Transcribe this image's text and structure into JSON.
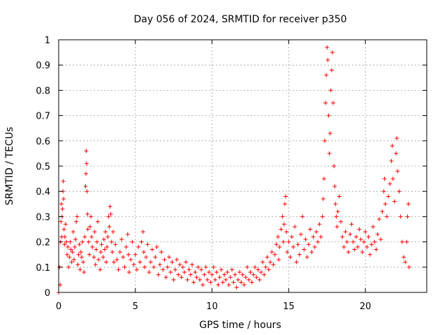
{
  "chart_data": {
    "type": "scatter",
    "title": "Day 056 of 2024, SRMTID for receiver p350",
    "xlabel": "GPS time / hours",
    "ylabel": "SRMTID / TECUs",
    "xlim": [
      0,
      24
    ],
    "ylim": [
      0,
      1
    ],
    "xticks": [
      0,
      5,
      10,
      15,
      20
    ],
    "xtick_labels": [
      "0",
      "5",
      "10",
      "15",
      "20"
    ],
    "yticks": [
      0,
      0.1,
      0.2,
      0.3,
      0.4,
      0.5,
      0.6,
      0.7,
      0.8,
      0.9,
      1
    ],
    "ytick_labels": [
      "0",
      "0.1",
      "0.2",
      "0.3",
      "0.4",
      "0.5",
      "0.6",
      "0.7",
      "0.8",
      "0.9",
      "1"
    ],
    "grid": true,
    "marker": "+",
    "series": [
      {
        "name": "SRMTID",
        "color": "#ff0000",
        "points": [
          [
            0.0,
            0.0
          ],
          [
            0.05,
            0.1
          ],
          [
            0.1,
            0.03
          ],
          [
            0.12,
            0.2
          ],
          [
            0.15,
            0.28
          ],
          [
            0.18,
            0.35
          ],
          [
            0.2,
            0.22
          ],
          [
            0.22,
            0.3
          ],
          [
            0.25,
            0.33
          ],
          [
            0.28,
            0.4
          ],
          [
            0.3,
            0.44
          ],
          [
            0.32,
            0.37
          ],
          [
            0.35,
            0.25
          ],
          [
            0.38,
            0.19
          ],
          [
            0.4,
            0.22
          ],
          [
            0.45,
            0.27
          ],
          [
            0.5,
            0.2
          ],
          [
            0.55,
            0.15
          ],
          [
            0.6,
            0.18
          ],
          [
            0.65,
            0.1
          ],
          [
            0.7,
            0.14
          ],
          [
            0.75,
            0.2
          ],
          [
            0.8,
            0.17
          ],
          [
            0.85,
            0.12
          ],
          [
            0.9,
            0.16
          ],
          [
            0.95,
            0.24
          ],
          [
            1.0,
            0.13
          ],
          [
            1.05,
            0.18
          ],
          [
            1.1,
            0.21
          ],
          [
            1.15,
            0.28
          ],
          [
            1.2,
            0.3
          ],
          [
            1.25,
            0.11
          ],
          [
            1.3,
            0.15
          ],
          [
            1.35,
            0.19
          ],
          [
            1.4,
            0.09
          ],
          [
            1.45,
            0.16
          ],
          [
            1.5,
            0.14
          ],
          [
            1.55,
            0.2
          ],
          [
            1.6,
            0.12
          ],
          [
            1.65,
            0.08
          ],
          [
            1.7,
            0.22
          ],
          [
            1.75,
            0.42
          ],
          [
            1.78,
            0.47
          ],
          [
            1.8,
            0.56
          ],
          [
            1.82,
            0.51
          ],
          [
            1.85,
            0.4
          ],
          [
            1.88,
            0.31
          ],
          [
            1.9,
            0.25
          ],
          [
            1.95,
            0.2
          ],
          [
            2.0,
            0.15
          ],
          [
            2.05,
            0.26
          ],
          [
            2.1,
            0.3
          ],
          [
            2.15,
            0.22
          ],
          [
            2.2,
            0.18
          ],
          [
            2.3,
            0.14
          ],
          [
            2.35,
            0.24
          ],
          [
            2.4,
            0.11
          ],
          [
            2.45,
            0.17
          ],
          [
            2.5,
            0.2
          ],
          [
            2.55,
            0.28
          ],
          [
            2.6,
            0.13
          ],
          [
            2.7,
            0.09
          ],
          [
            2.75,
            0.16
          ],
          [
            2.8,
            0.19
          ],
          [
            2.9,
            0.14
          ],
          [
            2.95,
            0.21
          ],
          [
            3.0,
            0.17
          ],
          [
            3.05,
            0.24
          ],
          [
            3.1,
            0.12
          ],
          [
            3.15,
            0.18
          ],
          [
            3.2,
            0.22
          ],
          [
            3.25,
            0.3
          ],
          [
            3.3,
            0.26
          ],
          [
            3.35,
            0.34
          ],
          [
            3.4,
            0.31
          ],
          [
            3.45,
            0.2
          ],
          [
            3.5,
            0.16
          ],
          [
            3.55,
            0.24
          ],
          [
            3.6,
            0.12
          ],
          [
            3.7,
            0.19
          ],
          [
            3.8,
            0.13
          ],
          [
            3.9,
            0.09
          ],
          [
            4.0,
            0.16
          ],
          [
            4.1,
            0.21
          ],
          [
            4.2,
            0.14
          ],
          [
            4.3,
            0.1
          ],
          [
            4.4,
            0.18
          ],
          [
            4.5,
            0.23
          ],
          [
            4.55,
            0.15
          ],
          [
            4.6,
            0.08
          ],
          [
            4.7,
            0.13
          ],
          [
            4.8,
            0.2
          ],
          [
            4.9,
            0.11
          ],
          [
            5.0,
            0.15
          ],
          [
            5.1,
            0.09
          ],
          [
            5.2,
            0.18
          ],
          [
            5.3,
            0.12
          ],
          [
            5.4,
            0.2
          ],
          [
            5.5,
            0.24
          ],
          [
            5.55,
            0.16
          ],
          [
            5.6,
            0.1
          ],
          [
            5.7,
            0.14
          ],
          [
            5.8,
            0.19
          ],
          [
            5.9,
            0.08
          ],
          [
            6.0,
            0.12
          ],
          [
            6.1,
            0.17
          ],
          [
            6.2,
            0.1
          ],
          [
            6.3,
            0.14
          ],
          [
            6.4,
            0.18
          ],
          [
            6.5,
            0.07
          ],
          [
            6.6,
            0.11
          ],
          [
            6.7,
            0.16
          ],
          [
            6.8,
            0.09
          ],
          [
            6.9,
            0.13
          ],
          [
            7.0,
            0.06
          ],
          [
            7.1,
            0.1
          ],
          [
            7.2,
            0.14
          ],
          [
            7.3,
            0.08
          ],
          [
            7.4,
            0.12
          ],
          [
            7.5,
            0.05
          ],
          [
            7.6,
            0.09
          ],
          [
            7.7,
            0.13
          ],
          [
            7.8,
            0.07
          ],
          [
            7.9,
            0.11
          ],
          [
            8.0,
            0.06
          ],
          [
            8.1,
            0.1
          ],
          [
            8.2,
            0.08
          ],
          [
            8.3,
            0.12
          ],
          [
            8.4,
            0.05
          ],
          [
            8.5,
            0.09
          ],
          [
            8.6,
            0.07
          ],
          [
            8.7,
            0.11
          ],
          [
            8.8,
            0.04
          ],
          [
            8.9,
            0.08
          ],
          [
            9.0,
            0.06
          ],
          [
            9.1,
            0.1
          ],
          [
            9.2,
            0.05
          ],
          [
            9.3,
            0.09
          ],
          [
            9.4,
            0.03
          ],
          [
            9.5,
            0.07
          ],
          [
            9.6,
            0.1
          ],
          [
            9.7,
            0.05
          ],
          [
            9.8,
            0.08
          ],
          [
            9.9,
            0.04
          ],
          [
            10.0,
            0.07
          ],
          [
            10.1,
            0.1
          ],
          [
            10.2,
            0.05
          ],
          [
            10.3,
            0.08
          ],
          [
            10.4,
            0.03
          ],
          [
            10.5,
            0.06
          ],
          [
            10.6,
            0.09
          ],
          [
            10.7,
            0.04
          ],
          [
            10.8,
            0.07
          ],
          [
            10.9,
            0.05
          ],
          [
            11.0,
            0.08
          ],
          [
            11.1,
            0.03
          ],
          [
            11.2,
            0.06
          ],
          [
            11.3,
            0.09
          ],
          [
            11.4,
            0.04
          ],
          [
            11.5,
            0.07
          ],
          [
            11.6,
            0.02
          ],
          [
            11.7,
            0.05
          ],
          [
            11.8,
            0.08
          ],
          [
            11.9,
            0.04
          ],
          [
            12.0,
            0.07
          ],
          [
            12.1,
            0.03
          ],
          [
            12.2,
            0.06
          ],
          [
            12.3,
            0.1
          ],
          [
            12.4,
            0.05
          ],
          [
            12.5,
            0.08
          ],
          [
            12.6,
            0.04
          ],
          [
            12.7,
            0.07
          ],
          [
            12.8,
            0.1
          ],
          [
            12.9,
            0.06
          ],
          [
            13.0,
            0.09
          ],
          [
            13.1,
            0.05
          ],
          [
            13.2,
            0.08
          ],
          [
            13.3,
            0.12
          ],
          [
            13.4,
            0.07
          ],
          [
            13.5,
            0.1
          ],
          [
            13.6,
            0.14
          ],
          [
            13.7,
            0.09
          ],
          [
            13.8,
            0.12
          ],
          [
            13.9,
            0.16
          ],
          [
            14.0,
            0.11
          ],
          [
            14.1,
            0.15
          ],
          [
            14.2,
            0.19
          ],
          [
            14.3,
            0.22
          ],
          [
            14.35,
            0.13
          ],
          [
            14.4,
            0.18
          ],
          [
            14.5,
            0.25
          ],
          [
            14.6,
            0.3
          ],
          [
            14.65,
            0.2
          ],
          [
            14.7,
            0.27
          ],
          [
            14.75,
            0.35
          ],
          [
            14.8,
            0.38
          ],
          [
            14.85,
            0.24
          ],
          [
            14.9,
            0.16
          ],
          [
            15.0,
            0.2
          ],
          [
            15.1,
            0.14
          ],
          [
            15.2,
            0.22
          ],
          [
            15.3,
            0.18
          ],
          [
            15.4,
            0.26
          ],
          [
            15.5,
            0.12
          ],
          [
            15.6,
            0.19
          ],
          [
            15.7,
            0.15
          ],
          [
            15.8,
            0.23
          ],
          [
            15.9,
            0.3
          ],
          [
            16.0,
            0.17
          ],
          [
            16.1,
            0.21
          ],
          [
            16.2,
            0.14
          ],
          [
            16.3,
            0.19
          ],
          [
            16.4,
            0.25
          ],
          [
            16.5,
            0.16
          ],
          [
            16.6,
            0.22
          ],
          [
            16.7,
            0.18
          ],
          [
            16.8,
            0.24
          ],
          [
            16.9,
            0.2
          ],
          [
            17.0,
            0.27
          ],
          [
            17.1,
            0.22
          ],
          [
            17.2,
            0.3
          ],
          [
            17.25,
            0.37
          ],
          [
            17.3,
            0.45
          ],
          [
            17.35,
            0.6
          ],
          [
            17.4,
            0.75
          ],
          [
            17.45,
            0.86
          ],
          [
            17.5,
            0.97
          ],
          [
            17.55,
            0.92
          ],
          [
            17.6,
            0.7
          ],
          [
            17.65,
            0.55
          ],
          [
            17.7,
            0.63
          ],
          [
            17.75,
            0.8
          ],
          [
            17.8,
            0.88
          ],
          [
            17.85,
            0.95
          ],
          [
            17.9,
            0.75
          ],
          [
            17.95,
            0.5
          ],
          [
            18.0,
            0.42
          ],
          [
            18.05,
            0.35
          ],
          [
            18.1,
            0.3
          ],
          [
            18.15,
            0.26
          ],
          [
            18.2,
            0.32
          ],
          [
            18.3,
            0.38
          ],
          [
            18.4,
            0.28
          ],
          [
            18.5,
            0.22
          ],
          [
            18.6,
            0.18
          ],
          [
            18.7,
            0.24
          ],
          [
            18.8,
            0.2
          ],
          [
            18.9,
            0.16
          ],
          [
            19.0,
            0.23
          ],
          [
            19.1,
            0.27
          ],
          [
            19.2,
            0.2
          ],
          [
            19.3,
            0.17
          ],
          [
            19.4,
            0.22
          ],
          [
            19.5,
            0.18
          ],
          [
            19.6,
            0.25
          ],
          [
            19.7,
            0.21
          ],
          [
            19.8,
            0.16
          ],
          [
            19.9,
            0.2
          ],
          [
            20.0,
            0.24
          ],
          [
            20.1,
            0.18
          ],
          [
            20.2,
            0.22
          ],
          [
            20.3,
            0.15
          ],
          [
            20.4,
            0.19
          ],
          [
            20.5,
            0.26
          ],
          [
            20.6,
            0.2
          ],
          [
            20.7,
            0.17
          ],
          [
            20.8,
            0.23
          ],
          [
            20.9,
            0.29
          ],
          [
            21.0,
            0.21
          ],
          [
            21.1,
            0.32
          ],
          [
            21.2,
            0.4
          ],
          [
            21.25,
            0.45
          ],
          [
            21.3,
            0.35
          ],
          [
            21.4,
            0.3
          ],
          [
            21.5,
            0.38
          ],
          [
            21.6,
            0.43
          ],
          [
            21.7,
            0.52
          ],
          [
            21.75,
            0.58
          ],
          [
            21.8,
            0.45
          ],
          [
            21.9,
            0.36
          ],
          [
            22.0,
            0.55
          ],
          [
            22.05,
            0.61
          ],
          [
            22.1,
            0.48
          ],
          [
            22.2,
            0.4
          ],
          [
            22.3,
            0.3
          ],
          [
            22.4,
            0.2
          ],
          [
            22.5,
            0.14
          ],
          [
            22.6,
            0.12
          ],
          [
            22.7,
            0.2
          ],
          [
            22.75,
            0.3
          ],
          [
            22.8,
            0.35
          ],
          [
            22.85,
            0.1
          ]
        ]
      }
    ]
  }
}
